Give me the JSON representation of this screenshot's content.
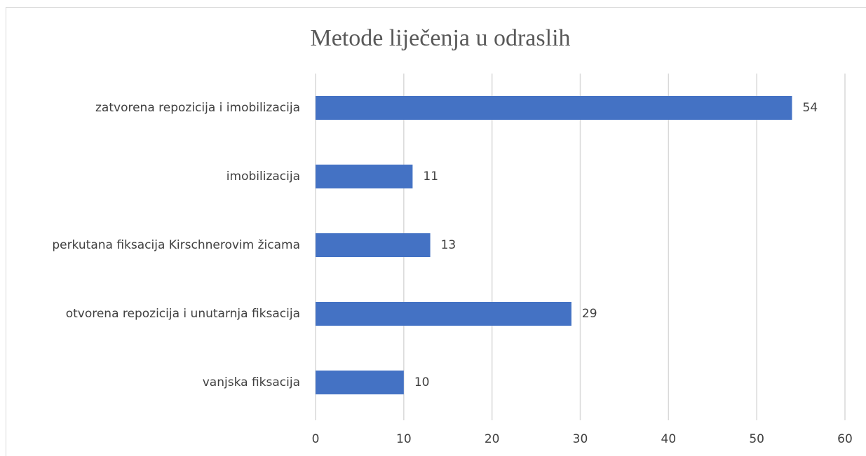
{
  "chart_data": {
    "type": "bar",
    "orientation": "horizontal",
    "title": "Metode liječenja u odraslih",
    "categories": [
      "zatvorena repozicija i imobilizacija",
      "imobilizacija",
      "perkutana fiksacija Kirschnerovim žicama",
      "otvorena repozicija i unutarnja fiksacija",
      "vanjska fiksacija"
    ],
    "values": [
      54,
      11,
      13,
      29,
      10
    ],
    "color": "#4472c4",
    "xlim": [
      0,
      60
    ],
    "xticks": [
      0,
      10,
      20,
      30,
      40,
      50,
      60
    ],
    "grid": true
  }
}
